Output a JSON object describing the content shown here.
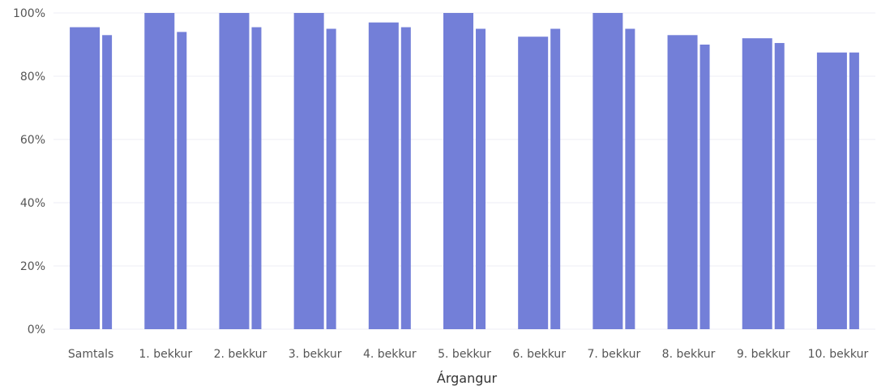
{
  "chart_data": {
    "type": "bar",
    "xlabel": "Árgangur",
    "ylabel": "",
    "ylim": [
      0,
      100
    ],
    "y_ticks": [
      0,
      20,
      40,
      60,
      80,
      100
    ],
    "y_tick_labels": [
      "0%",
      "20%",
      "40%",
      "60%",
      "80%",
      "100%"
    ],
    "grid": true,
    "categories": [
      "Samtals",
      "1. bekkur",
      "2. bekkur",
      "3. bekkur",
      "4. bekkur",
      "5. bekkur",
      "6. bekkur",
      "7. bekkur",
      "8. bekkur",
      "9. bekkur",
      "10. bekkur"
    ],
    "series": [
      {
        "values": [
          95.5,
          100,
          100,
          100,
          97,
          100,
          92.5,
          100,
          93,
          92,
          87.5
        ]
      },
      {
        "values": [
          93,
          94,
          95.5,
          95,
          95.5,
          95,
          95,
          95,
          90,
          90.5,
          87.5
        ]
      }
    ],
    "colors": [
      "#737fd8",
      "#737fd8"
    ]
  }
}
